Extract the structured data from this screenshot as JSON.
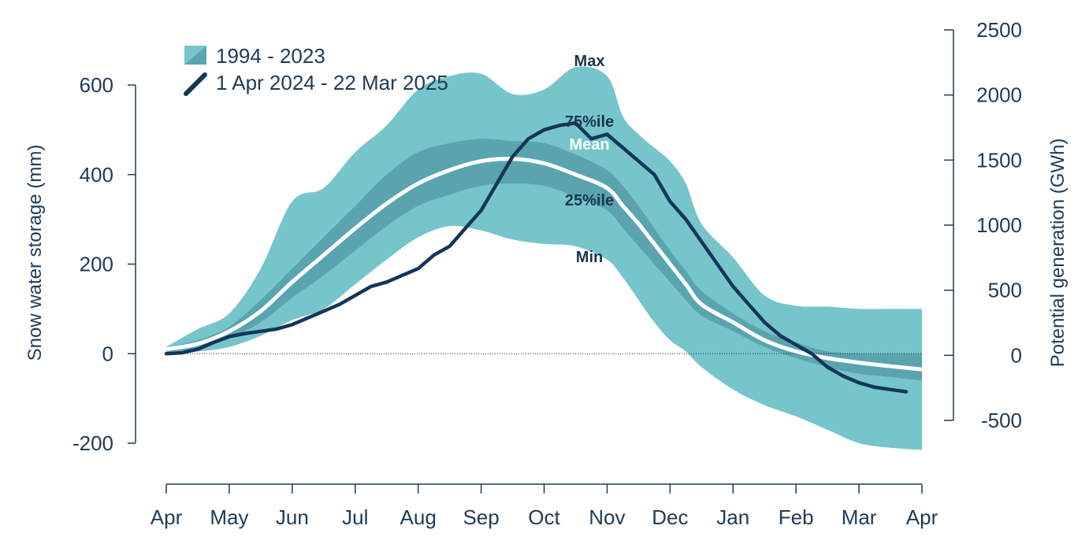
{
  "colors": {
    "range_band": "#76c5cb",
    "iqr_band": "#5aa4af",
    "mean_line": "#ffffff",
    "current_line": "#13365a",
    "text": "#1f3b57",
    "axis": "#1f3b57",
    "zero_line": "#222222"
  },
  "chart_data": {
    "type": "area",
    "xlabel": "",
    "ylabel_left": "Snow water storage (mm)",
    "ylabel_right": "Potential generation (GWh)",
    "x_ticks": [
      "Apr",
      "May",
      "Jun",
      "Jul",
      "Aug",
      "Sep",
      "Oct",
      "Nov",
      "Dec",
      "Jan",
      "Feb",
      "Mar",
      "Apr"
    ],
    "ylim_left": [
      -200,
      600
    ],
    "yticks_left": [
      -200,
      0,
      200,
      400,
      600
    ],
    "ylim_right": [
      -500,
      2500
    ],
    "yticks_right": [
      -500,
      0,
      500,
      1000,
      1500,
      2000,
      2500
    ],
    "zero_reference_line": true,
    "grid": false,
    "legend_position": "top-left",
    "legend": [
      {
        "label": "1994 - 2023",
        "symbol": "band"
      },
      {
        "label": "1 Apr 2024 - 22 Mar 2025",
        "symbol": "line"
      }
    ],
    "band_labels": {
      "max": "Max",
      "p75": "75%ile",
      "mean": "Mean",
      "p25": "25%ile",
      "min": "Min"
    },
    "x": [
      0,
      0.5,
      1,
      1.5,
      2,
      2.5,
      3,
      3.5,
      4,
      4.5,
      5,
      5.5,
      6,
      6.5,
      7,
      7.25,
      7.5,
      7.75,
      8,
      8.25,
      8.5,
      9,
      9.5,
      10,
      10.5,
      11,
      11.5,
      12
    ],
    "series": [
      {
        "name": "Max",
        "values": [
          15,
          55,
          90,
          190,
          340,
          370,
          450,
          510,
          590,
          620,
          625,
          580,
          590,
          640,
          620,
          530,
          490,
          460,
          430,
          380,
          290,
          215,
          130,
          107,
          105,
          100,
          100,
          100
        ]
      },
      {
        "name": "75%ile",
        "values": [
          15,
          30,
          60,
          120,
          190,
          260,
          330,
          400,
          450,
          470,
          480,
          475,
          470,
          445,
          410,
          375,
          330,
          280,
          230,
          185,
          140,
          90,
          50,
          25,
          5,
          0,
          0,
          0
        ]
      },
      {
        "name": "Mean",
        "values": [
          10,
          22,
          50,
          95,
          160,
          220,
          280,
          335,
          380,
          410,
          430,
          435,
          425,
          400,
          370,
          330,
          290,
          245,
          200,
          155,
          110,
          70,
          30,
          5,
          -10,
          -20,
          -28,
          -35
        ]
      },
      {
        "name": "25%ile",
        "values": [
          5,
          12,
          35,
          70,
          125,
          175,
          230,
          285,
          330,
          355,
          375,
          380,
          375,
          350,
          320,
          280,
          240,
          200,
          160,
          120,
          85,
          50,
          15,
          -10,
          -30,
          -45,
          -52,
          -60
        ]
      },
      {
        "name": "Min",
        "values": [
          0,
          5,
          15,
          40,
          75,
          100,
          155,
          210,
          260,
          285,
          275,
          255,
          245,
          240,
          210,
          170,
          120,
          70,
          30,
          5,
          -30,
          -80,
          -115,
          -140,
          -170,
          -200,
          -210,
          -215
        ]
      },
      {
        "name": "1 Apr 2024 - 22 Mar 2025",
        "x": [
          0,
          0.25,
          0.5,
          0.75,
          1,
          1.25,
          1.5,
          1.75,
          2,
          2.25,
          2.5,
          2.75,
          3,
          3.25,
          3.5,
          3.75,
          4,
          4.25,
          4.5,
          4.75,
          5,
          5.25,
          5.5,
          5.75,
          6,
          6.25,
          6.5,
          6.75,
          7,
          7.25,
          7.5,
          7.75,
          8,
          8.25,
          8.5,
          8.75,
          9,
          9.25,
          9.5,
          9.75,
          10,
          10.25,
          10.5,
          10.75,
          11,
          11.25,
          11.5,
          11.75
        ],
        "values": [
          0,
          2,
          10,
          25,
          38,
          45,
          50,
          55,
          65,
          80,
          95,
          110,
          130,
          150,
          160,
          175,
          190,
          220,
          240,
          280,
          320,
          380,
          440,
          480,
          500,
          510,
          515,
          480,
          490,
          460,
          430,
          400,
          340,
          300,
          250,
          200,
          150,
          110,
          70,
          40,
          20,
          0,
          -30,
          -50,
          -65,
          -75,
          -80,
          -85
        ]
      }
    ]
  }
}
